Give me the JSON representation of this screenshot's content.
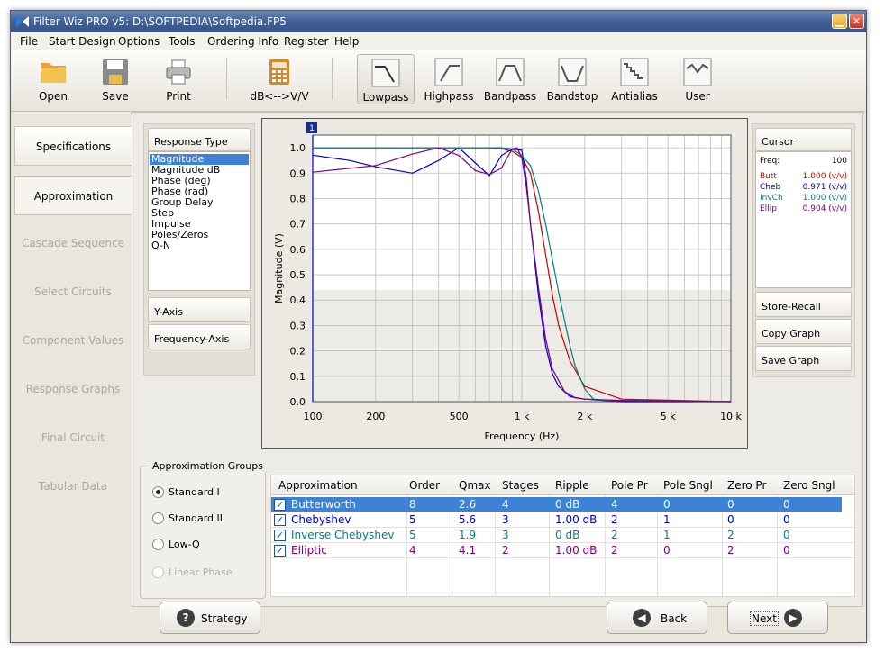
{
  "window": {
    "title": "Filter Wiz PRO v5: D:\\SOFTPEDIA\\Softpedia.FP5"
  },
  "menu": [
    "File",
    "Start Design",
    "Options",
    "Tools",
    "Ordering Info",
    "Register",
    "Help"
  ],
  "toolbar": {
    "open": "Open",
    "save": "Save",
    "print": "Print",
    "db": "dB<-->V/V",
    "lowpass": "Lowpass",
    "highpass": "Highpass",
    "bandpass": "Bandpass",
    "bandstop": "Bandstop",
    "antialias": "Antialias",
    "user": "User"
  },
  "nav": [
    "Specifications",
    "Approximation",
    "Cascade Sequence",
    "Select Circuits",
    "Component Values",
    "Response Graphs",
    "Final Circuit",
    "Tabular Data"
  ],
  "response": {
    "header": "Response Type",
    "items": [
      "Magnitude",
      "Magnitude dB",
      "Phase (deg)",
      "Phase (rad)",
      "Group Delay",
      "Step",
      "Impulse",
      "Poles/Zeros",
      "Q-N"
    ],
    "selected": "Magnitude",
    "y_axis": "Y-Axis",
    "freq_axis": "Frequency-Axis"
  },
  "graph": {
    "badge": "1"
  },
  "chart_data": {
    "type": "line",
    "title": "",
    "xlabel": "Frequency (Hz)",
    "ylabel": "Magnitude (V)",
    "xscale": "log",
    "xlim": [
      100,
      10000
    ],
    "ylim": [
      0,
      1.05
    ],
    "xticks": [
      100,
      200,
      500,
      1000,
      2000,
      5000,
      10000
    ],
    "xticklabels": [
      "100",
      "200",
      "500",
      "1 k",
      "2 k",
      "5 k",
      "10 k"
    ],
    "yticks": [
      0,
      0.1,
      0.2,
      0.3,
      0.4,
      0.5,
      0.6,
      0.7,
      0.8,
      0.9,
      1.0
    ],
    "yticklabels": [
      "0.0",
      "0.1",
      "0.2",
      "0.3",
      "0.4",
      "0.5",
      "0.6",
      "0.7",
      "0.8",
      "0.9",
      "1.0"
    ],
    "grid": true,
    "series": [
      {
        "name": "Butt",
        "color": "#cc0000",
        "x": [
          100,
          300,
          500,
          700,
          800,
          900,
          1000,
          1100,
          1200,
          1300,
          1400,
          1500,
          1700,
          2000,
          3000,
          10000
        ],
        "y": [
          1,
          1,
          1,
          1,
          0.996,
          0.986,
          0.962,
          0.9,
          0.75,
          0.58,
          0.42,
          0.3,
          0.16,
          0.06,
          0.01,
          0
        ]
      },
      {
        "name": "Cheb",
        "color": "#0000cc",
        "x": [
          100,
          150,
          200,
          300,
          400,
          500,
          600,
          700,
          800,
          900,
          1000,
          1050,
          1100,
          1200,
          1300,
          1400,
          1500,
          1700,
          2000,
          3000,
          10000
        ],
        "y": [
          0.971,
          0.95,
          0.925,
          0.9,
          0.95,
          1.0,
          0.94,
          0.89,
          0.97,
          0.995,
          0.99,
          0.88,
          0.7,
          0.42,
          0.22,
          0.11,
          0.06,
          0.02,
          0.01,
          0,
          0
        ]
      },
      {
        "name": "InvCh",
        "color": "#008080",
        "x": [
          100,
          500,
          800,
          900,
          1000,
          1100,
          1200,
          1300,
          1400,
          1500,
          1600,
          1700,
          1800,
          2000,
          2200,
          2500,
          10000
        ],
        "y": [
          1,
          1,
          1,
          0.995,
          0.97,
          0.93,
          0.83,
          0.7,
          0.56,
          0.43,
          0.32,
          0.22,
          0.14,
          0.05,
          0.01,
          0.005,
          0
        ]
      },
      {
        "name": "Ellip",
        "color": "#800080",
        "x": [
          100,
          200,
          300,
          400,
          500,
          600,
          700,
          800,
          850,
          900,
          950,
          1000,
          1050,
          1100,
          1200,
          1300,
          1400,
          1600,
          1800,
          2000,
          3000,
          10000
        ],
        "y": [
          0.904,
          0.93,
          0.975,
          1.0,
          0.97,
          0.91,
          0.895,
          0.92,
          0.96,
          0.995,
          1.0,
          0.96,
          0.85,
          0.7,
          0.45,
          0.25,
          0.13,
          0.04,
          0.015,
          0.01,
          0.005,
          0
        ]
      }
    ]
  },
  "cursor": {
    "header": "Cursor",
    "freq_label": "Freq:",
    "freq_value": "100",
    "rows": [
      {
        "name": "Butt",
        "value": "1.000 (v/v)",
        "color": "#cc0000"
      },
      {
        "name": "Cheb",
        "value": "0.971 (v/v)",
        "color": "#0000cc"
      },
      {
        "name": "InvCh",
        "value": "1.000 (v/v)",
        "color": "#008080"
      },
      {
        "name": "Ellip",
        "value": "0.904 (v/v)",
        "color": "#800080"
      }
    ],
    "store": "Store-Recall",
    "copy": "Copy Graph",
    "save": "Save Graph"
  },
  "groups": {
    "title": "Approximation Groups",
    "options": [
      "Standard I",
      "Standard II",
      "Low-Q",
      "Linear Phase"
    ]
  },
  "table": {
    "headers": [
      "Approximation",
      "Order",
      "Qmax",
      "Stages",
      "Ripple",
      "Pole Pr",
      "Pole Sngl",
      "Zero Pr",
      "Zero Sngl"
    ],
    "rows": [
      {
        "color": "#ffffff",
        "cells": [
          "Butterworth",
          "8",
          "2.6",
          "4",
          "0 dB",
          "4",
          "0",
          "0",
          "0"
        ]
      },
      {
        "color": "#0000cc",
        "cells": [
          "Chebyshev",
          "5",
          "5.6",
          "3",
          "1.00 dB",
          "2",
          "1",
          "0",
          "0"
        ]
      },
      {
        "color": "#008080",
        "cells": [
          "Inverse Chebyshev",
          "5",
          "1.9",
          "3",
          "0 dB",
          "2",
          "1",
          "2",
          "0"
        ]
      },
      {
        "color": "#800080",
        "cells": [
          "Elliptic",
          "4",
          "4.1",
          "2",
          "1.00 dB",
          "2",
          "0",
          "2",
          "0"
        ]
      }
    ]
  },
  "buttons": {
    "strategy": "Strategy",
    "back": "Back",
    "next": "Next"
  }
}
